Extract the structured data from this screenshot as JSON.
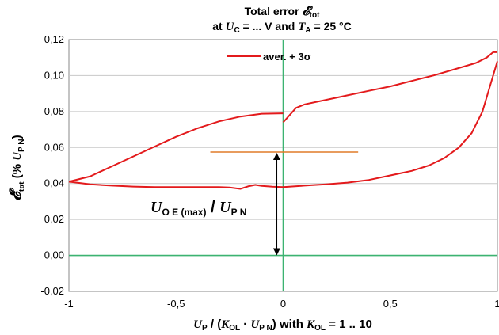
{
  "chart_data": {
    "type": "line",
    "title_line1": "Total error 𝓔tot",
    "title_line2": "at UC = ... V and TA = 25 °C",
    "xlabel": "UP / (KOL · UP N) with KOL = 1 .. 10",
    "ylabel": "𝓔tot (% UP N)",
    "xlim": [
      -1,
      1
    ],
    "ylim": [
      -0.02,
      0.12
    ],
    "x_ticks": [
      "-1",
      "-0,5",
      "0",
      "0,5",
      "1"
    ],
    "x_tick_values": [
      -1,
      -0.5,
      0,
      0.5,
      1
    ],
    "y_ticks": [
      "-0,02",
      "0,00",
      "0,02",
      "0,04",
      "0,06",
      "0,08",
      "0,10",
      "0,12"
    ],
    "y_tick_values": [
      -0.02,
      0,
      0.02,
      0.04,
      0.06,
      0.08,
      0.1,
      0.12
    ],
    "grid": "horizontal",
    "legend_position": "top",
    "colors": {
      "series": "#e31a1c",
      "zero_lines": "#3cb371",
      "marker_line": "#e07b28",
      "grid": "#c8c8c8"
    },
    "series": [
      {
        "name": "aver. + 3σ",
        "segments": [
          {
            "x": [
              -1,
              -0.9,
              -0.8,
              -0.7,
              -0.6,
              -0.5,
              -0.4,
              -0.3,
              -0.2,
              -0.1,
              0
            ],
            "y": [
              0.041,
              0.044,
              0.0495,
              0.055,
              0.0605,
              0.066,
              0.0707,
              0.0745,
              0.0772,
              0.0788,
              0.079
            ]
          },
          {
            "x": [
              0,
              0.03,
              0.06,
              0.1,
              0.2,
              0.3,
              0.4,
              0.5,
              0.6,
              0.7,
              0.8,
              0.9,
              0.95,
              0.98,
              1
            ],
            "y": [
              0.074,
              0.078,
              0.082,
              0.084,
              0.0865,
              0.089,
              0.0915,
              0.094,
              0.097,
              0.1,
              0.1035,
              0.107,
              0.11,
              0.113,
              0.113
            ]
          },
          {
            "x": [
              1,
              0.97,
              0.93,
              0.88,
              0.82,
              0.75,
              0.68,
              0.6,
              0.5,
              0.4,
              0.3,
              0.2,
              0.1,
              0,
              -0.05,
              -0.1,
              -0.13,
              -0.16,
              -0.2,
              -0.25,
              -0.3,
              -0.4,
              -0.5,
              -0.6,
              -0.7,
              -0.8,
              -0.9,
              -1
            ],
            "y": [
              0.108,
              0.096,
              0.08,
              0.068,
              0.06,
              0.054,
              0.05,
              0.047,
              0.0445,
              0.042,
              0.0405,
              0.0395,
              0.0388,
              0.038,
              0.0382,
              0.0387,
              0.0392,
              0.0385,
              0.037,
              0.0378,
              0.038,
              0.038,
              0.038,
              0.038,
              0.0383,
              0.0388,
              0.0395,
              0.041
            ]
          }
        ]
      }
    ],
    "annotation": {
      "label": "UO E (max) / UP N",
      "arrow_x": -0.03,
      "arrow_from": 0,
      "arrow_to": 0.0575,
      "hline_y": 0.0575,
      "hline_x_range": [
        -0.34,
        0.35
      ]
    }
  }
}
